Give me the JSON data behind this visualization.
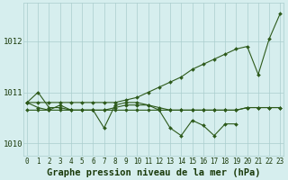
{
  "title": "Graphe pression niveau de la mer (hPa)",
  "hours": [
    0,
    1,
    2,
    3,
    4,
    5,
    6,
    7,
    8,
    9,
    10,
    11,
    12,
    13,
    14,
    15,
    16,
    17,
    18,
    19,
    20,
    21,
    22,
    23
  ],
  "line_rising": [
    1010.8,
    1010.8,
    1010.8,
    1010.8,
    1010.8,
    1010.8,
    1010.8,
    1010.8,
    1010.8,
    1010.85,
    1010.9,
    1011.0,
    1011.1,
    1011.2,
    1011.3,
    1011.45,
    1011.55,
    1011.65,
    1011.75,
    1011.85,
    1011.9,
    1011.35,
    1012.05,
    1012.55
  ],
  "line_flat1": [
    1010.8,
    1011.0,
    1010.7,
    1010.7,
    1010.65,
    1010.65,
    1010.65,
    1010.65,
    1010.7,
    1010.75,
    1010.75,
    1010.75,
    1010.7,
    1010.65,
    1010.65,
    1010.65,
    1010.65,
    1010.65,
    1010.65,
    1010.65,
    1010.7,
    1010.7,
    1010.7,
    1010.7
  ],
  "line_flat2": [
    1010.65,
    1010.65,
    1010.65,
    1010.65,
    1010.65,
    1010.65,
    1010.65,
    1010.65,
    1010.65,
    1010.65,
    1010.65,
    1010.65,
    1010.65,
    1010.65,
    1010.65,
    1010.65,
    1010.65,
    1010.65,
    1010.65,
    1010.65,
    1010.7,
    1010.7,
    1010.7,
    1010.7
  ],
  "line_wavy": [
    1010.8,
    1010.7,
    1010.65,
    1010.75,
    1010.65,
    1010.65,
    1010.65,
    1010.3,
    1010.75,
    1010.8,
    1010.8,
    1010.75,
    1010.65,
    1010.3,
    1010.15,
    1010.45,
    1010.35,
    1010.15,
    1010.38,
    1010.38,
    null,
    null,
    null,
    null
  ],
  "ylim": [
    1009.75,
    1012.75
  ],
  "yticks": [
    1010,
    1011,
    1012
  ],
  "line_color": "#2d5a1b",
  "bg_color": "#d6eeee",
  "grid_color": "#aacece",
  "label_color": "#1a3a0a",
  "title_fontsize": 7.5,
  "tick_fontsize": 5.5
}
